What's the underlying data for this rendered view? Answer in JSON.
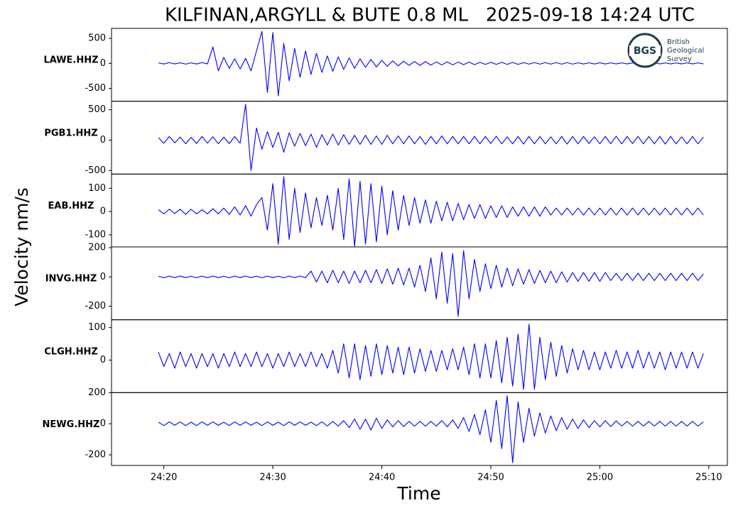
{
  "title": "KILFINAN,ARGYLL & BUTE 0.8 ML   2025-09-18 14:24 UTC",
  "ylabel": "Velocity nm/s",
  "xlabel": "Time",
  "logo": {
    "abbr": "BGS",
    "lines": [
      "British",
      "Geological",
      "Survey"
    ]
  },
  "xlim": [
    15.2,
    71.7
  ],
  "xticks": [
    {
      "value": 20,
      "label": "24:20"
    },
    {
      "value": 30,
      "label": "24:30"
    },
    {
      "value": 40,
      "label": "24:40"
    },
    {
      "value": 50,
      "label": "24:50"
    },
    {
      "value": 60,
      "label": "25:00"
    },
    {
      "value": 70,
      "label": "25:10"
    }
  ],
  "x": [
    19.5,
    20,
    20.5,
    21,
    21.5,
    22,
    22.5,
    23,
    23.5,
    24,
    24.5,
    25,
    25.5,
    26,
    26.5,
    27,
    27.5,
    28,
    28.5,
    29,
    29.5,
    30,
    30.5,
    31,
    31.5,
    32,
    32.5,
    33,
    33.5,
    34,
    34.5,
    35,
    35.5,
    36,
    36.5,
    37,
    37.5,
    38,
    38.5,
    39,
    39.5,
    40,
    40.5,
    41,
    41.5,
    42,
    42.5,
    43,
    43.5,
    44,
    44.5,
    45,
    45.5,
    46,
    46.5,
    47,
    47.5,
    48,
    48.5,
    49,
    49.5,
    50,
    50.5,
    51,
    51.5,
    52,
    52.5,
    53,
    53.5,
    54,
    54.5,
    55,
    55.5,
    56,
    56.5,
    57,
    57.5,
    58,
    58.5,
    59,
    59.5,
    60,
    60.5,
    61,
    61.5,
    62,
    62.5,
    63,
    63.5,
    64,
    64.5,
    65,
    65.5,
    66,
    66.5,
    67,
    67.5,
    68,
    68.5,
    69,
    69.5
  ],
  "chart_data": [
    {
      "type": "line",
      "label": "LAWE.HHZ",
      "color": "#0000ff",
      "ylim": [
        -757,
        700
      ],
      "yticks": [
        -500,
        0,
        500
      ],
      "values": [
        10,
        -12,
        15,
        -10,
        12,
        -15,
        10,
        -12,
        15,
        -10,
        330,
        -150,
        120,
        -100,
        90,
        -110,
        100,
        -150,
        250,
        640,
        -580,
        620,
        -650,
        400,
        -350,
        300,
        -280,
        250,
        -220,
        200,
        -180,
        150,
        -160,
        130,
        -120,
        110,
        -100,
        90,
        -80,
        80,
        -70,
        60,
        -60,
        50,
        -50,
        45,
        -40,
        40,
        -40,
        35,
        -35,
        30,
        -30,
        30,
        -30,
        25,
        -25,
        25,
        -25,
        20,
        -20,
        20,
        -20,
        20,
        -20,
        20,
        -20,
        15,
        -15,
        15,
        -15,
        15,
        -15,
        15,
        -15,
        15,
        -15,
        12,
        -12,
        12,
        -12,
        12,
        -12,
        10,
        -10,
        10,
        -10,
        10,
        -10,
        10,
        -10,
        10,
        -10,
        10,
        -10,
        10,
        -10,
        10,
        -10,
        10,
        -10
      ]
    },
    {
      "type": "line",
      "label": "PGB1.HHZ",
      "color": "#0000ff",
      "ylim": [
        -558,
        640
      ],
      "yticks": [
        -500,
        0,
        500
      ],
      "values": [
        40,
        -50,
        60,
        -45,
        50,
        -60,
        45,
        -55,
        60,
        -50,
        55,
        -60,
        50,
        -55,
        60,
        -50,
        590,
        -500,
        200,
        -150,
        140,
        -120,
        130,
        -200,
        120,
        -100,
        110,
        -90,
        100,
        -120,
        90,
        -80,
        100,
        -80,
        90,
        -70,
        80,
        -70,
        80,
        -70,
        70,
        -70,
        80,
        -60,
        70,
        -60,
        70,
        -60,
        60,
        -70,
        60,
        -60,
        70,
        -60,
        60,
        -60,
        60,
        -60,
        60,
        -60,
        60,
        -55,
        65,
        -60,
        55,
        -60,
        60,
        -65,
        60,
        -60,
        60,
        -60,
        55,
        -60,
        60,
        -65,
        60,
        -60,
        60,
        -55,
        55,
        -60,
        60,
        -60,
        65,
        -60,
        60,
        -55,
        60,
        -60,
        60,
        -60,
        60,
        -65,
        60,
        -60,
        55,
        -60,
        60,
        -60,
        50
      ]
    },
    {
      "type": "line",
      "label": "EAB.HHZ",
      "color": "#0000ff",
      "ylim": [
        -152,
        161
      ],
      "yticks": [
        -100,
        0,
        100
      ],
      "values": [
        8,
        -10,
        10,
        -8,
        10,
        -12,
        10,
        -10,
        8,
        -10,
        12,
        -10,
        15,
        -12,
        20,
        -15,
        25,
        -20,
        30,
        60,
        -80,
        120,
        -140,
        150,
        -120,
        100,
        -90,
        80,
        -70,
        60,
        -60,
        70,
        -80,
        100,
        -120,
        140,
        -150,
        130,
        -140,
        120,
        -130,
        110,
        -100,
        90,
        -80,
        70,
        -60,
        60,
        -50,
        50,
        -50,
        45,
        -40,
        40,
        -40,
        35,
        -35,
        30,
        -30,
        30,
        -30,
        25,
        -25,
        25,
        -25,
        20,
        -20,
        20,
        -20,
        20,
        -20,
        20,
        -15,
        15,
        -15,
        15,
        -15,
        15,
        -15,
        15,
        -15,
        15,
        -15,
        15,
        -15,
        15,
        -15,
        15,
        -15,
        15,
        -15,
        15,
        -15,
        15,
        -15,
        15,
        -15,
        15,
        -15,
        15,
        -15
      ]
    },
    {
      "type": "line",
      "label": "INVG.HHZ",
      "color": "#0000ff",
      "ylim": [
        -293,
        205
      ],
      "yticks": [
        -200,
        0,
        200
      ],
      "values": [
        5,
        -6,
        6,
        -5,
        6,
        -5,
        5,
        -6,
        6,
        -5,
        6,
        -5,
        5,
        -6,
        6,
        -5,
        6,
        -5,
        5,
        -6,
        6,
        -5,
        5,
        -6,
        6,
        -5,
        6,
        -5,
        40,
        -35,
        40,
        -40,
        45,
        -40,
        40,
        -45,
        40,
        -40,
        45,
        -40,
        50,
        -45,
        55,
        -50,
        60,
        -55,
        60,
        -70,
        80,
        -100,
        130,
        -150,
        170,
        -180,
        160,
        -270,
        180,
        -150,
        120,
        -100,
        90,
        -80,
        80,
        -70,
        60,
        -60,
        55,
        -50,
        50,
        -45,
        45,
        -40,
        40,
        -40,
        35,
        -35,
        30,
        -30,
        30,
        -30,
        30,
        -30,
        30,
        -25,
        25,
        -25,
        25,
        -25,
        25,
        -25,
        25,
        -25,
        25,
        -25,
        25,
        -25,
        25,
        -25,
        25,
        -25,
        20
      ]
    },
    {
      "type": "line",
      "label": "CLGH.HHZ",
      "color": "#0000ff",
      "ylim": [
        -100,
        124
      ],
      "yticks": [
        0,
        100
      ],
      "values": [
        25,
        -20,
        20,
        -25,
        25,
        -20,
        20,
        -25,
        20,
        -20,
        20,
        -25,
        20,
        -20,
        25,
        -20,
        20,
        -20,
        25,
        -20,
        20,
        -25,
        20,
        -20,
        25,
        -20,
        20,
        -20,
        25,
        -20,
        20,
        -25,
        30,
        -40,
        50,
        -55,
        50,
        -60,
        45,
        -50,
        50,
        -45,
        45,
        -40,
        40,
        -45,
        40,
        -40,
        35,
        -35,
        30,
        -35,
        30,
        -30,
        35,
        -30,
        40,
        -45,
        50,
        -55,
        50,
        -55,
        60,
        -70,
        70,
        -80,
        80,
        -90,
        110,
        -90,
        70,
        -60,
        55,
        -50,
        45,
        -40,
        35,
        -30,
        30,
        -30,
        25,
        -30,
        25,
        -25,
        30,
        -25,
        25,
        -25,
        30,
        -25,
        25,
        -25,
        25,
        -30,
        25,
        -25,
        25,
        -25,
        25,
        -25,
        20
      ]
    },
    {
      "type": "line",
      "label": "NEWG.HHZ",
      "color": "#0000ff",
      "ylim": [
        -268,
        200
      ],
      "yticks": [
        -200,
        0,
        200
      ],
      "values": [
        10,
        -12,
        12,
        -10,
        12,
        -12,
        10,
        -12,
        12,
        -10,
        12,
        -10,
        10,
        -12,
        12,
        -10,
        12,
        -10,
        10,
        -12,
        12,
        -10,
        10,
        -12,
        12,
        -10,
        12,
        -10,
        10,
        -12,
        12,
        -15,
        15,
        -15,
        20,
        -25,
        30,
        -35,
        30,
        -40,
        35,
        -30,
        25,
        -20,
        20,
        -18,
        15,
        -15,
        15,
        -15,
        15,
        -15,
        20,
        -20,
        25,
        -30,
        40,
        -50,
        60,
        -70,
        90,
        -120,
        150,
        -160,
        180,
        -250,
        140,
        -120,
        100,
        -80,
        70,
        -60,
        50,
        -45,
        40,
        -35,
        30,
        -30,
        25,
        -25,
        20,
        -20,
        20,
        -18,
        18,
        -15,
        15,
        -15,
        15,
        -15,
        15,
        -15,
        15,
        -15,
        15,
        -15,
        15,
        -15,
        15,
        -15,
        12
      ]
    }
  ]
}
